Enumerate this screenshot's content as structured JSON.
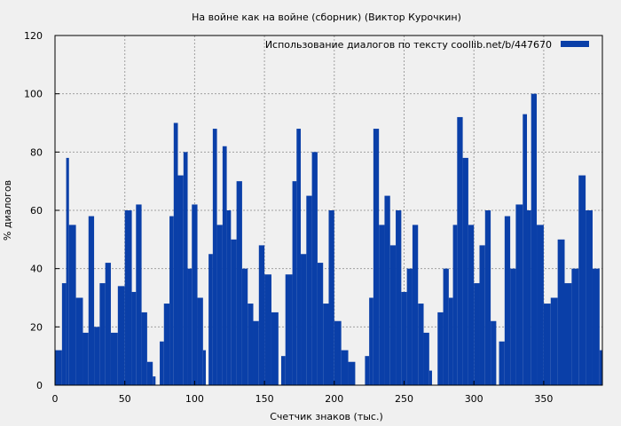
{
  "chart_data": {
    "type": "bar",
    "title": "На войне как на войне (сборник) (Виктор Курочкин)",
    "xlabel": "Счетчик знаков (тыс.)",
    "ylabel": "% диалогов",
    "xlim": [
      0,
      392
    ],
    "ylim": [
      0,
      120
    ],
    "x_ticks": [
      "0",
      "50",
      "100",
      "150",
      "200",
      "250",
      "300",
      "350"
    ],
    "y_ticks": [
      "0",
      "20",
      "40",
      "60",
      "80",
      "100",
      "120"
    ],
    "grid": true,
    "legend_position": "top-right",
    "series": [
      {
        "name": "Использование диалогов по тексту  coollib.net/b/447670",
        "color": "#0a3fa8",
        "x": [
          0,
          5,
          8,
          10,
          15,
          20,
          24,
          28,
          32,
          36,
          40,
          45,
          50,
          55,
          58,
          62,
          66,
          70,
          72,
          75,
          78,
          82,
          85,
          88,
          92,
          95,
          98,
          102,
          106,
          108,
          110,
          113,
          116,
          120,
          123,
          126,
          130,
          134,
          138,
          142,
          146,
          150,
          155,
          160,
          162,
          165,
          170,
          173,
          176,
          180,
          184,
          188,
          192,
          196,
          200,
          205,
          210,
          215,
          218,
          222,
          225,
          228,
          232,
          236,
          240,
          244,
          248,
          252,
          256,
          260,
          264,
          268,
          270,
          274,
          278,
          282,
          285,
          288,
          292,
          296,
          300,
          304,
          308,
          312,
          316,
          318,
          322,
          326,
          330,
          335,
          338,
          341,
          345,
          350,
          355,
          360,
          365,
          370,
          375,
          380,
          385,
          390
        ],
        "values": [
          12,
          35,
          78,
          55,
          30,
          18,
          58,
          20,
          35,
          42,
          18,
          34,
          60,
          32,
          62,
          25,
          8,
          3,
          0,
          15,
          28,
          58,
          90,
          72,
          80,
          40,
          62,
          30,
          12,
          0,
          45,
          88,
          55,
          82,
          60,
          50,
          70,
          40,
          28,
          22,
          48,
          38,
          25,
          0,
          10,
          38,
          70,
          88,
          45,
          65,
          80,
          42,
          28,
          60,
          22,
          12,
          8,
          0,
          0,
          10,
          30,
          88,
          55,
          65,
          48,
          60,
          32,
          40,
          55,
          28,
          18,
          5,
          0,
          25,
          40,
          30,
          55,
          92,
          78,
          55,
          35,
          48,
          60,
          22,
          0,
          15,
          58,
          40,
          62,
          93,
          60,
          100,
          55,
          28,
          30,
          50,
          35,
          40,
          72,
          60,
          40,
          12
        ]
      }
    ]
  }
}
